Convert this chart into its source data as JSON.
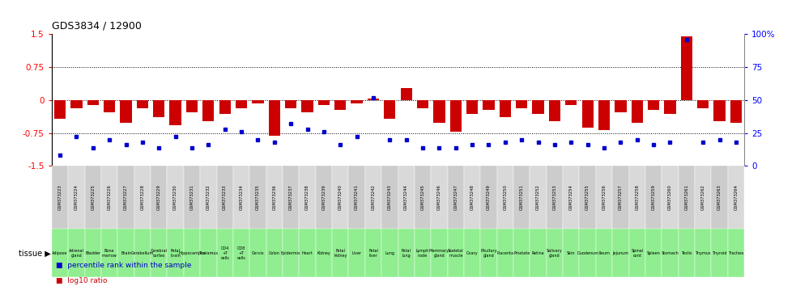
{
  "title": "GDS3834 / 12900",
  "gsm_ids": [
    "GSM373223",
    "GSM373224",
    "GSM373225",
    "GSM373226",
    "GSM373227",
    "GSM373228",
    "GSM373229",
    "GSM373230",
    "GSM373231",
    "GSM373232",
    "GSM373233",
    "GSM373234",
    "GSM373235",
    "GSM373236",
    "GSM373237",
    "GSM373238",
    "GSM373239",
    "GSM373240",
    "GSM373241",
    "GSM373242",
    "GSM373243",
    "GSM373244",
    "GSM373245",
    "GSM373246",
    "GSM373247",
    "GSM373248",
    "GSM373249",
    "GSM373250",
    "GSM373251",
    "GSM373252",
    "GSM373253",
    "GSM373254",
    "GSM373255",
    "GSM373256",
    "GSM373257",
    "GSM373258",
    "GSM373259",
    "GSM373260",
    "GSM373261",
    "GSM373262",
    "GSM373263",
    "GSM373264"
  ],
  "tissues": [
    "Adipose",
    "Adrenal gland",
    "Bladder",
    "Bone marrow",
    "Brain",
    "Cerebellum",
    "Cerebral cortex",
    "Fetal brain",
    "Hippocampus",
    "Thalamus",
    "CD4 +T cells",
    "CD8 +T cells",
    "Cervix",
    "Colon",
    "Epidermis",
    "Heart",
    "Kidney",
    "Fetal kidney",
    "Liver",
    "Fetal liver",
    "Lung",
    "Fetal lung",
    "Lymph node",
    "Mammary gland",
    "Skeletal muscle",
    "Ovary",
    "Pituitary gland",
    "Placenta",
    "Prostate",
    "Retina",
    "Salivary gland",
    "Skin",
    "Duodenum",
    "Ileum",
    "Jejunum",
    "Spinal cord",
    "Spleen",
    "Stomach",
    "Testis",
    "Thymus",
    "Thyroid",
    "Trachea"
  ],
  "log10_ratio": [
    -0.42,
    -0.18,
    -0.12,
    -0.28,
    -0.52,
    -0.18,
    -0.38,
    -0.58,
    -0.28,
    -0.48,
    -0.32,
    -0.18,
    -0.08,
    -0.82,
    -0.18,
    -0.28,
    -0.12,
    -0.22,
    -0.08,
    0.04,
    -0.42,
    0.28,
    -0.18,
    -0.52,
    -0.72,
    -0.32,
    -0.22,
    -0.38,
    -0.18,
    -0.32,
    -0.48,
    -0.12,
    -0.62,
    -0.68,
    -0.28,
    -0.52,
    -0.22,
    -0.32,
    1.45,
    -0.18,
    -0.48,
    -0.52
  ],
  "percentile_rank": [
    8,
    22,
    14,
    20,
    16,
    18,
    14,
    22,
    14,
    16,
    28,
    26,
    20,
    18,
    32,
    28,
    26,
    16,
    22,
    52,
    20,
    20,
    14,
    14,
    14,
    16,
    16,
    18,
    20,
    18,
    16,
    18,
    16,
    14,
    18,
    20,
    16,
    18,
    96,
    18,
    20,
    18
  ],
  "ylim": [
    -1.5,
    1.5
  ],
  "y2lim": [
    0,
    100
  ],
  "yticks_left": [
    -1.5,
    -0.75,
    0,
    0.75,
    1.5
  ],
  "ytick_labels_left": [
    "-1.5",
    "-0.75",
    "0",
    "0.75",
    "1.5"
  ],
  "yticks_right": [
    0,
    25,
    50,
    75,
    100
  ],
  "ytick_labels_right": [
    "0",
    "25",
    "50",
    "75",
    "100%"
  ],
  "dotted_lines": [
    0.75,
    0.0,
    -0.75
  ],
  "bar_color": "#cc0000",
  "dot_color": "#0000cc",
  "legend_log10": "log10 ratio",
  "legend_pct": "percentile rank within the sample"
}
